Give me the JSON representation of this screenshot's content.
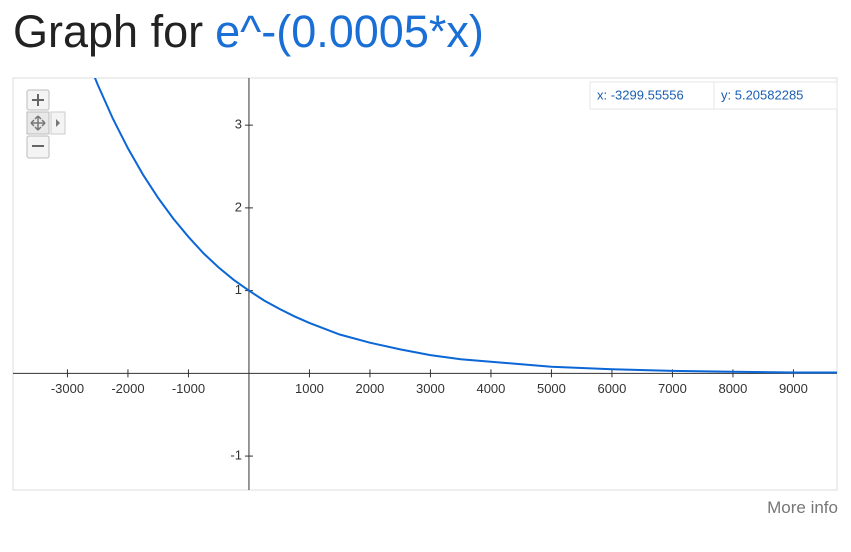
{
  "header": {
    "prefix": "Graph for",
    "expression": "e^-(0.0005*x)"
  },
  "readout": {
    "x": "x: -3299.55556",
    "y": "y: 5.20582285"
  },
  "footer": {
    "link": "More info"
  },
  "chart_data": {
    "type": "line",
    "x": [
      -2600,
      -2500,
      -2250,
      -2000,
      -1750,
      -1500,
      -1250,
      -1000,
      -750,
      -500,
      -250,
      0,
      250,
      500,
      750,
      1000,
      1500,
      2000,
      2500,
      3000,
      3500,
      4000,
      4500,
      5000,
      6000,
      7000,
      8000,
      9000,
      9720
    ],
    "series": [
      {
        "name": "e^-(0.0005*x)",
        "color": "#0b66d6",
        "values": [
          3.67,
          3.49,
          3.08,
          2.72,
          2.4,
          2.12,
          1.87,
          1.65,
          1.45,
          1.28,
          1.13,
          1,
          0.88,
          0.78,
          0.69,
          0.61,
          0.47,
          0.37,
          0.29,
          0.22,
          0.17,
          0.14,
          0.11,
          0.08,
          0.05,
          0.03,
          0.02,
          0.01,
          0.01
        ]
      }
    ],
    "xlim": [
      -3900,
      9720
    ],
    "ylim": [
      -1.41,
      3.57
    ],
    "xticks": [
      -3000,
      -2000,
      -1000,
      1000,
      2000,
      3000,
      4000,
      5000,
      6000,
      7000,
      8000,
      9000
    ],
    "yticks": [
      -1,
      1,
      2,
      3
    ]
  }
}
